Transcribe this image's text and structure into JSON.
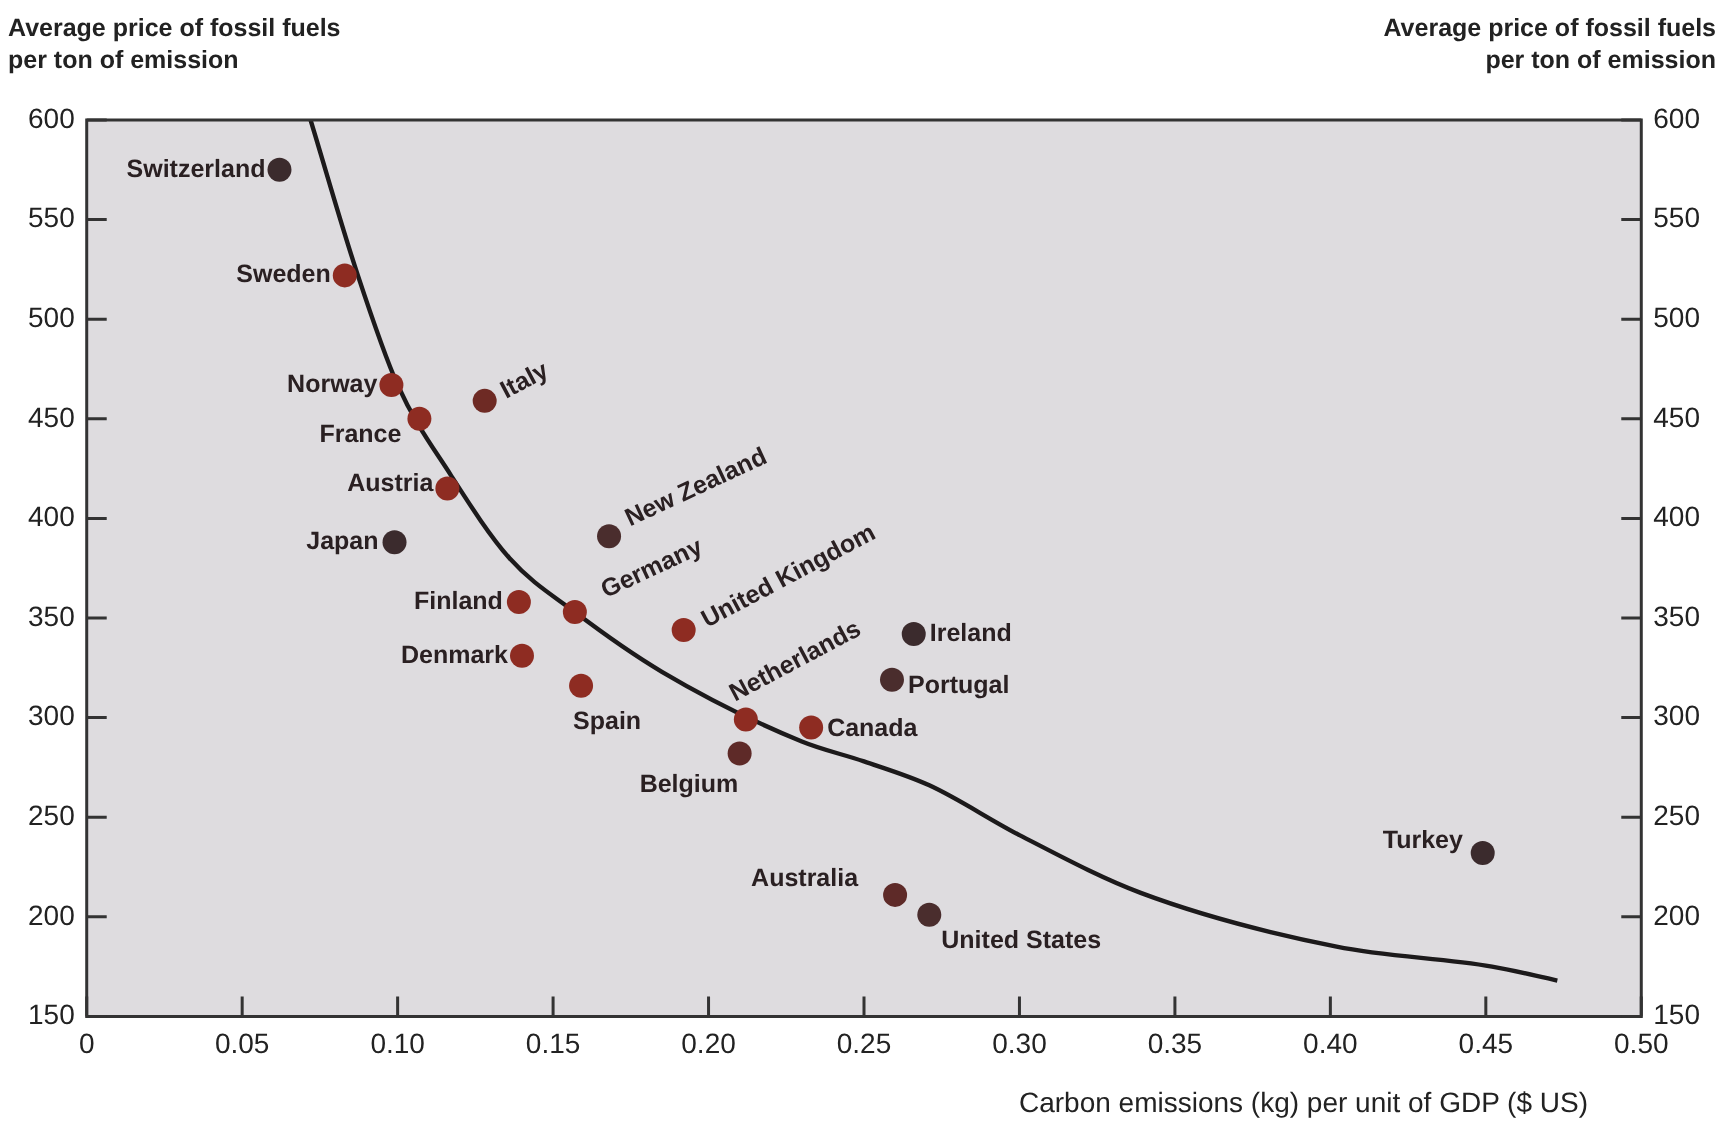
{
  "chart_data": {
    "type": "scatter",
    "ylabel": "Average price of fossil fuels\nper ton of emission",
    "y2label": "Average price of fossil fuels\nper ton of emission",
    "xlabel": "Carbon emissions (kg) per unit of GDP ($ US)",
    "xlim": [
      0,
      0.5
    ],
    "xticks": [
      0,
      0.05,
      {
        "value": 0.1,
        "label": "0.10"
      },
      0.15,
      {
        "value": 0.2,
        "label": "0.20"
      },
      0.25,
      {
        "value": 0.3,
        "label": "0.30"
      },
      0.35,
      {
        "value": 0.4,
        "label": "0.40"
      },
      0.45,
      {
        "value": 0.5,
        "label": "0.50"
      }
    ],
    "ylim": [
      150,
      600
    ],
    "yticks": [
      150,
      200,
      250,
      300,
      350,
      400,
      450,
      500,
      550,
      600
    ],
    "y2lim": [
      150,
      600
    ],
    "y2ticks": [
      150,
      200,
      250,
      300,
      350,
      400,
      450,
      500,
      550,
      600
    ],
    "marker": "circle",
    "legend": false,
    "series": [
      {
        "x": [
          0.062,
          0.083,
          0.098,
          0.107,
          0.128,
          0.116,
          0.099,
          0.168,
          0.139,
          0.157,
          0.192,
          0.14,
          0.159,
          0.212,
          0.21,
          0.233,
          0.266,
          0.259,
          0.26,
          0.271,
          0.449
        ],
        "values": [
          575,
          522,
          467,
          450,
          459,
          415,
          388,
          391,
          358,
          353,
          344,
          331,
          316,
          299,
          282,
          295,
          342,
          319,
          211,
          201,
          232
        ],
        "colors": [
          "#3b2b2d",
          "#8e2c22",
          "#8e2c22",
          "#8e2c22",
          "#6e2a24",
          "#8e2c22",
          "#3b2b2d",
          "#4a2d2d",
          "#8e2c22",
          "#8e2c22",
          "#8e2c22",
          "#8e2c22",
          "#8e2c22",
          "#8e2c22",
          "#5e2a28",
          "#8e2c22",
          "#3b2b2d",
          "#4a2d2d",
          "#5e2a28",
          "#4a2d2d",
          "#3b2b2d"
        ]
      },
      {
        "type": "line",
        "color": "#1c1a1b",
        "marker": "none",
        "line_style": "solid",
        "x": [
          0.072,
          0.087,
          0.1,
          0.117,
          0.136,
          0.157,
          0.185,
          0.23,
          0.25,
          0.271,
          0.3,
          0.339,
          0.402,
          0.452,
          0.473
        ],
        "values": [
          600,
          523,
          467,
          422,
          380,
          353,
          323,
          288,
          278,
          266,
          241,
          212,
          185,
          175,
          168
        ]
      }
    ],
    "annotations": [
      {
        "text": "Switzerland",
        "x": 0.062,
        "y": 575
      },
      {
        "text": "Sweden",
        "x": 0.083,
        "y": 522
      },
      {
        "text": "Norway",
        "x": 0.098,
        "y": 467
      },
      {
        "text": "France",
        "x": 0.107,
        "y": 450
      },
      {
        "text": "Italy",
        "x": 0.128,
        "y": 459
      },
      {
        "text": "Austria",
        "x": 0.116,
        "y": 415
      },
      {
        "text": "Japan",
        "x": 0.099,
        "y": 388
      },
      {
        "text": "New Zealand",
        "x": 0.168,
        "y": 391
      },
      {
        "text": "Finland",
        "x": 0.139,
        "y": 358
      },
      {
        "text": "Germany",
        "x": 0.157,
        "y": 353
      },
      {
        "text": "United Kingdom",
        "x": 0.192,
        "y": 344
      },
      {
        "text": "Denmark",
        "x": 0.14,
        "y": 331
      },
      {
        "text": "Spain",
        "x": 0.159,
        "y": 316
      },
      {
        "text": "Netherlands",
        "x": 0.212,
        "y": 299
      },
      {
        "text": "Belgium",
        "x": 0.21,
        "y": 282
      },
      {
        "text": "Canada",
        "x": 0.233,
        "y": 295
      },
      {
        "text": "Ireland",
        "x": 0.266,
        "y": 342
      },
      {
        "text": "Portugal",
        "x": 0.259,
        "y": 319
      },
      {
        "text": "Australia",
        "x": 0.26,
        "y": 211
      },
      {
        "text": "United States",
        "x": 0.271,
        "y": 201
      },
      {
        "text": "Turkey",
        "x": 0.449,
        "y": 232
      }
    ]
  }
}
